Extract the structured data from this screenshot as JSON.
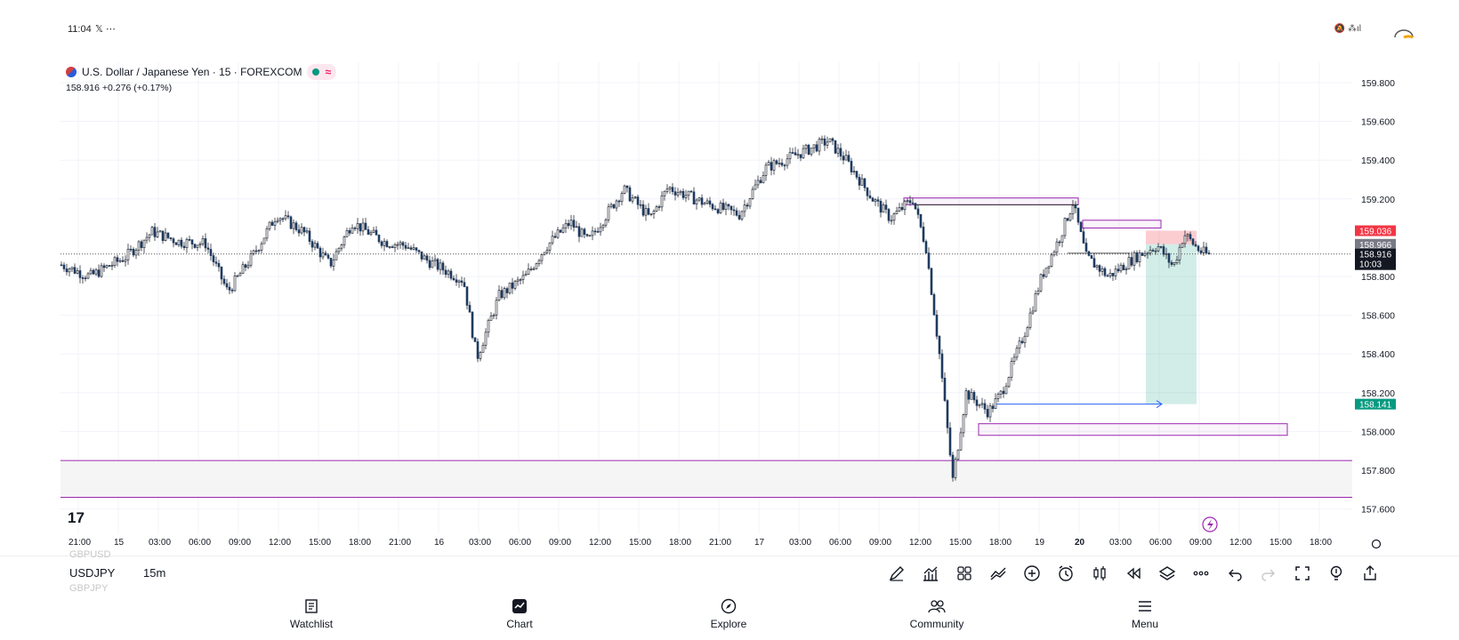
{
  "status_bar": {
    "time": "11:04",
    "icons": "𝕏 ⋯",
    "right_icons": "🔕 ⁂ıl"
  },
  "legend": {
    "title": "U.S. Dollar / Japanese Yen · 15 · FOREXCOM",
    "change": "158.916  +0.276 (+0.17%)"
  },
  "price_axis": {
    "ticks": [
      "159.800",
      "159.600",
      "159.400",
      "159.200",
      "158.800",
      "158.600",
      "158.400",
      "158.200",
      "158.000",
      "157.800",
      "157.600"
    ],
    "labels": [
      {
        "text": "159.036",
        "color": "#f23645"
      },
      {
        "text": "158.966",
        "color": "#787b86"
      },
      {
        "text": "158.916",
        "sub": "10:03",
        "color": "#131722"
      },
      {
        "text": "158.141",
        "color": "#089981"
      }
    ]
  },
  "time_axis": {
    "ticks": [
      "21:00",
      "15",
      "03:00",
      "06:00",
      "09:00",
      "12:00",
      "15:00",
      "18:00",
      "21:00",
      "16",
      "03:00",
      "06:00",
      "09:00",
      "12:00",
      "15:00",
      "18:00",
      "21:00",
      "17",
      "03:00",
      "06:00",
      "09:00",
      "12:00",
      "15:00",
      "18:00",
      "19",
      "20",
      "03:00",
      "06:00",
      "09:00",
      "12:00",
      "15:00",
      "18:00"
    ]
  },
  "chart_data": {
    "type": "candlestick",
    "symbol": "USDJPY",
    "interval": "15",
    "ylim": [
      157.55,
      159.9
    ],
    "last_price": 158.916,
    "key_levels": [
      {
        "name": "upper-zone-line",
        "value": 157.85
      },
      {
        "name": "lower-zone-line",
        "value": 157.66
      }
    ],
    "position": {
      "entry": 158.966,
      "stop": 159.036,
      "target": 158.141
    }
  },
  "toolbar": {
    "symbol": "USDJPY",
    "prev_symbol": "GBPUSD",
    "next_symbol": "GBPJPY",
    "timeframe": "15m"
  },
  "nav": {
    "watchlist": "Watchlist",
    "chart": "Chart",
    "explore": "Explore",
    "community": "Community",
    "menu": "Menu"
  }
}
